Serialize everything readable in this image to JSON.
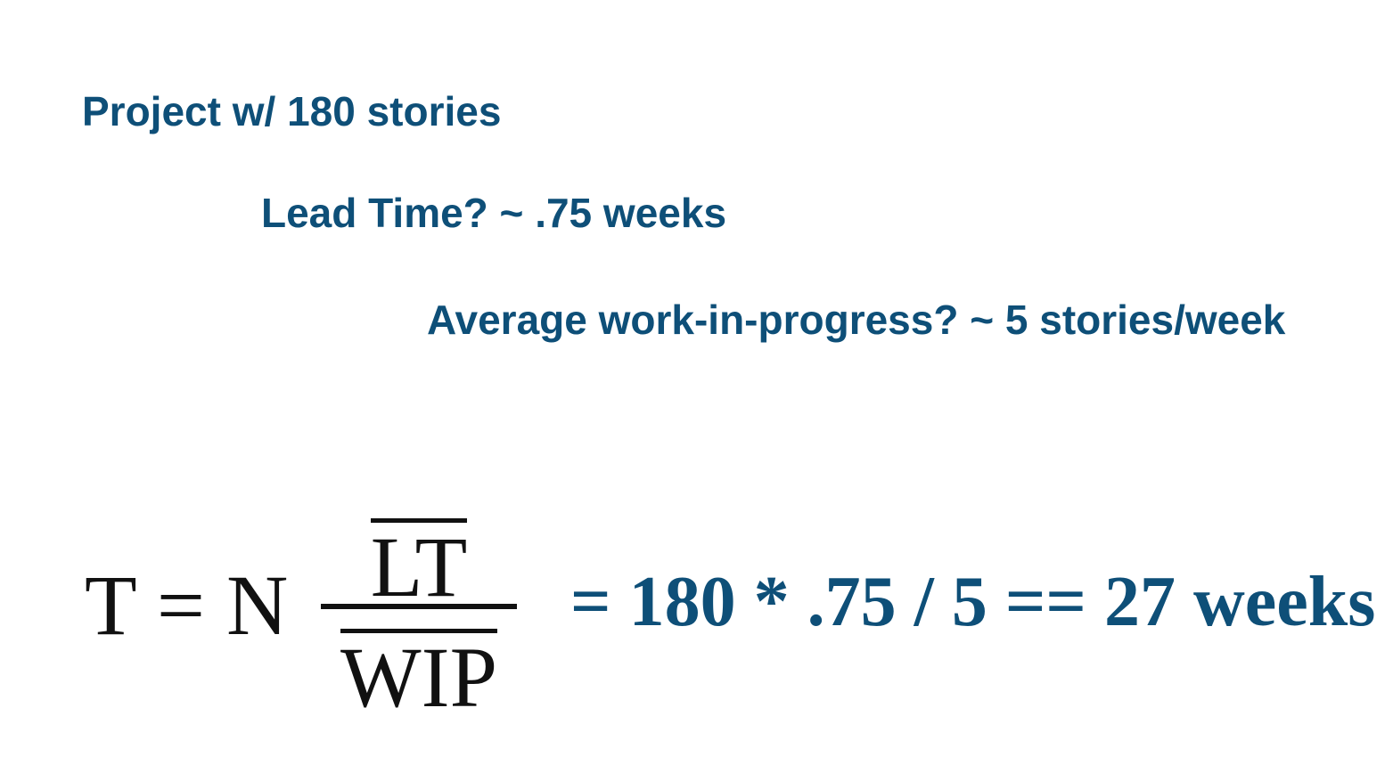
{
  "lines": {
    "project": "Project w/ 180 stories",
    "lead_time": "Lead Time? ~ .75 weeks",
    "wip": "Average work-in-progress? ~ 5 stories/week"
  },
  "formula": {
    "lhs": "T = N",
    "numerator": "LT",
    "denominator": "WIP",
    "result": "= 180 * .75 / 5 == 27 weeks"
  },
  "colors": {
    "text_blue": "#0e4f78",
    "formula_black": "#111111"
  }
}
